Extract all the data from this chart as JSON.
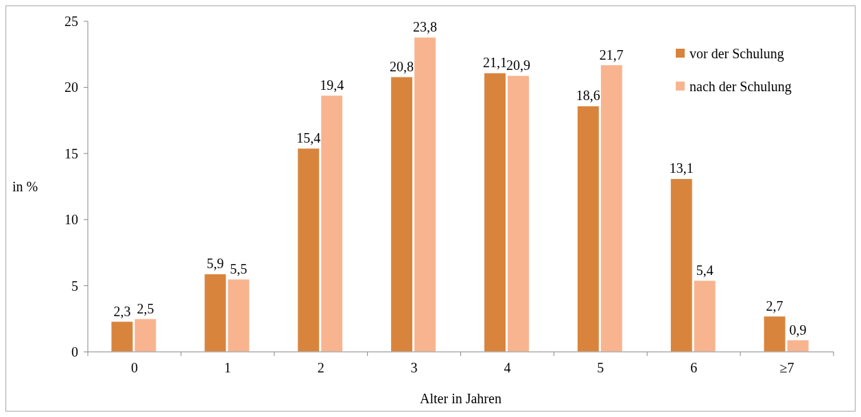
{
  "chart_data": {
    "type": "bar",
    "xlabel": "Alter in Jahren",
    "ylabel": "in %",
    "categories": [
      "0",
      "1",
      "2",
      "3",
      "4",
      "5",
      "6",
      "≥7"
    ],
    "series": [
      {
        "name": "vor der Schulung",
        "color": "#d9843d",
        "values": [
          2.3,
          5.9,
          15.4,
          20.8,
          21.1,
          18.6,
          13.1,
          2.7
        ],
        "value_labels": [
          "2,3",
          "5,9",
          "15,4",
          "20,8",
          "21,1",
          "18,6",
          "13,1",
          "2,7"
        ]
      },
      {
        "name": "nach der Schulung",
        "color": "#f8b48f",
        "values": [
          2.5,
          5.5,
          19.4,
          23.8,
          20.9,
          21.7,
          5.4,
          0.9
        ],
        "value_labels": [
          "2,5",
          "5,5",
          "19,4",
          "23,8",
          "20,9",
          "21,7",
          "5,4",
          "0,9"
        ]
      }
    ],
    "ylim": [
      0,
      25
    ],
    "yticks": [
      0,
      5,
      10,
      15,
      20,
      25
    ],
    "grid": false,
    "legend": "top right"
  }
}
